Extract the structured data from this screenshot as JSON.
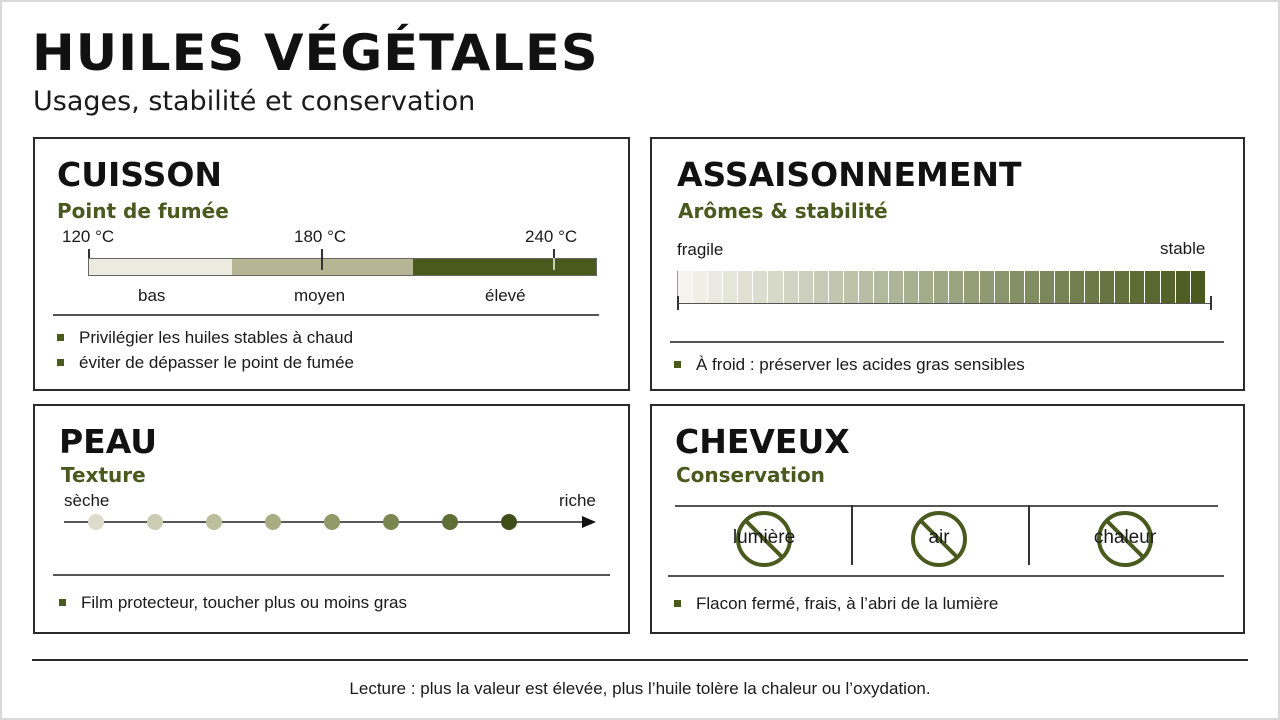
{
  "header": {
    "title": "HUILES VÉGÉTALES",
    "subtitle": "Usages, stabilité et conservation"
  },
  "cuisson": {
    "title": "CUISSON",
    "subtitle": "Point de fumée",
    "temps": [
      "120 °C",
      "180 °C",
      "240 °C"
    ],
    "zones": [
      "bas",
      "moyen",
      "élevé"
    ],
    "zone_colors": [
      "#ecebe0",
      "#b7b694",
      "#4a5a1e"
    ],
    "bullets": [
      "Privilégier les huiles stables à chaud",
      "éviter de dépasser le point de fumée"
    ]
  },
  "assaisonnement": {
    "title": "ASSAISONNEMENT",
    "subtitle": "Arômes & stabilité",
    "low_label": "fragile",
    "high_label": "stable",
    "bullet": "À froid : préserver les acides gras sensibles"
  },
  "peau": {
    "title": "PEAU",
    "subtitle": "Texture",
    "low_label": "sèche",
    "high_label": "riche",
    "dot_colors": [
      "#dddccb",
      "#ccccb3",
      "#bcbe9c",
      "#a8ad84",
      "#929a6a",
      "#7a864f",
      "#5f6e36",
      "#3f4d1a"
    ],
    "bullet": "Film protecteur, toucher plus ou moins gras"
  },
  "cheveux": {
    "title": "CHEVEUX",
    "subtitle": "Conservation",
    "items": [
      "lumière",
      "air",
      "chaleur"
    ],
    "bullet": "Flacon fermé, frais, à l’abri de la lumière"
  },
  "footer": {
    "note": "Lecture : plus la valeur est élevée, plus l’huile tolère la chaleur ou l’oxydation."
  },
  "colors": {
    "accent": "#4a5a1e",
    "border": "#2a2a2a"
  }
}
